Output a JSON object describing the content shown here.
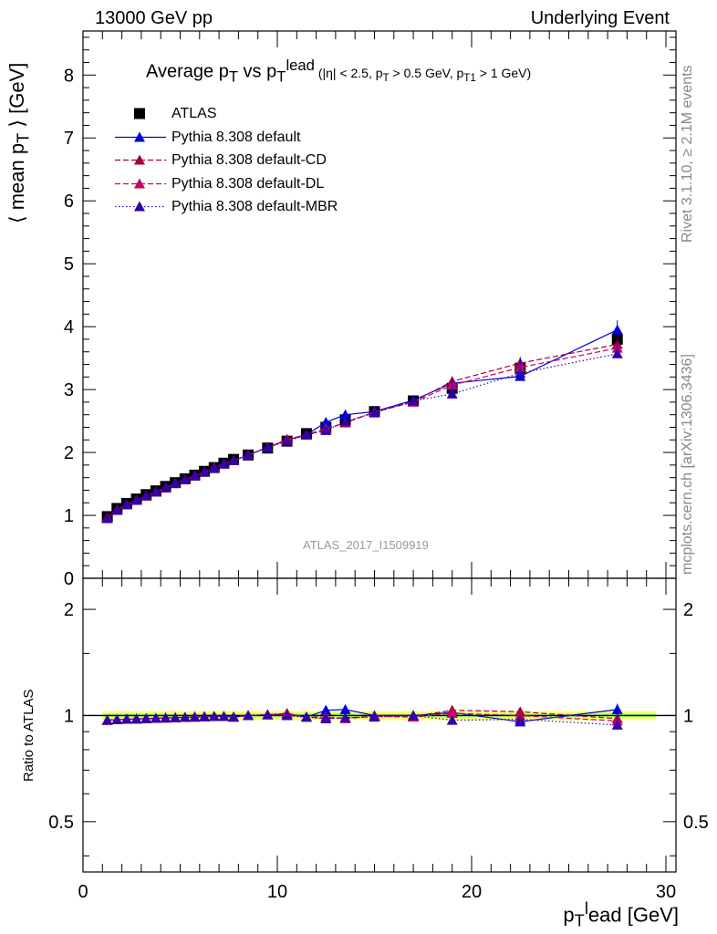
{
  "header": {
    "left": "13000 GeV pp",
    "right": "Underlying Event"
  },
  "side_text": {
    "rivet": "Rivet 3.1.10, ≥ 2.1M events",
    "mcplots": "mcplots.cern.ch [arXiv:1306.3436]"
  },
  "watermark": "ATLAS_2017_I1509919",
  "title": {
    "main": "Average p",
    "main_sub": "T",
    "vs": " vs p",
    "vs_sub": "T",
    "vs_sup": "lead",
    "cuts": " (|η| < 2.5, p",
    "cuts_sub1": "T",
    "cuts_mid": " > 0.5 GeV, p",
    "cuts_sub2": "T1",
    "cuts_end": " > 1 GeV)"
  },
  "legend": [
    {
      "label": "ATLAS",
      "color": "#000000",
      "style": "marker-square"
    },
    {
      "label": "Pythia 8.308 default",
      "color": "#0000dd",
      "style": "solid"
    },
    {
      "label": "Pythia 8.308 default-CD",
      "color": "#a0003c",
      "style": "dashed"
    },
    {
      "label": "Pythia 8.308 default-DL",
      "color": "#cc0066",
      "style": "dashed"
    },
    {
      "label": "Pythia 8.308 default-MBR",
      "color": "#3300aa",
      "style": "dotted"
    }
  ],
  "axes": {
    "ylabel_top": "⟨ mean p",
    "ylabel_top_sub": "T",
    "ylabel_top_end": " ⟩ [GeV]",
    "ylabel_bottom": "Ratio to ATLAS",
    "xlabel": "p",
    "xlabel_sub": "T",
    "xlabel_sup": "l",
    "xlabel_end": "ead [GeV]"
  },
  "chart_data": [
    {
      "type": "scatter",
      "panel": "main",
      "xlim": [
        0,
        30
      ],
      "ylim": [
        0,
        8.7
      ],
      "x_ticks": [
        0,
        10,
        20,
        30
      ],
      "y_ticks": [
        0,
        1,
        2,
        3,
        4,
        5,
        6,
        7,
        8
      ],
      "y_tick_labels": [
        "0",
        "1",
        "2",
        "3",
        "4",
        "5",
        "6",
        "7",
        "8"
      ],
      "x": [
        1.25,
        1.75,
        2.25,
        2.75,
        3.25,
        3.75,
        4.25,
        4.75,
        5.25,
        5.75,
        6.25,
        6.75,
        7.25,
        7.75,
        8.5,
        9.5,
        10.5,
        11.5,
        12.5,
        13.5,
        15,
        17,
        19,
        22.5,
        27.5
      ],
      "series": [
        {
          "name": "ATLAS",
          "color": "#000000",
          "style": "marker-square",
          "values": [
            0.98,
            1.11,
            1.19,
            1.26,
            1.33,
            1.39,
            1.46,
            1.52,
            1.58,
            1.64,
            1.7,
            1.76,
            1.83,
            1.89,
            1.96,
            2.07,
            2.18,
            2.3,
            2.4,
            2.52,
            2.65,
            2.82,
            3.02,
            3.34,
            3.8
          ]
        },
        {
          "name": "Pythia 8.308 default",
          "color": "#0000dd",
          "style": "solid",
          "values": [
            0.95,
            1.08,
            1.17,
            1.24,
            1.31,
            1.37,
            1.44,
            1.51,
            1.57,
            1.63,
            1.69,
            1.75,
            1.82,
            1.87,
            1.96,
            2.08,
            2.2,
            2.28,
            2.48,
            2.6,
            2.65,
            2.83,
            3.1,
            3.21,
            3.95
          ]
        },
        {
          "name": "Pythia 8.308 default-CD",
          "color": "#a0003c",
          "style": "dashed",
          "values": [
            0.96,
            1.09,
            1.17,
            1.24,
            1.31,
            1.37,
            1.44,
            1.51,
            1.57,
            1.63,
            1.69,
            1.76,
            1.82,
            1.87,
            1.96,
            2.08,
            2.21,
            2.28,
            2.36,
            2.48,
            2.64,
            2.81,
            3.13,
            3.42,
            3.72
          ]
        },
        {
          "name": "Pythia 8.308 default-DL",
          "color": "#cc0066",
          "style": "dashed",
          "values": [
            0.96,
            1.09,
            1.17,
            1.24,
            1.31,
            1.37,
            1.44,
            1.51,
            1.57,
            1.63,
            1.69,
            1.76,
            1.82,
            1.87,
            1.96,
            2.08,
            2.19,
            2.28,
            2.38,
            2.47,
            2.64,
            2.8,
            3.07,
            3.35,
            3.66
          ]
        },
        {
          "name": "Pythia 8.308 default-MBR",
          "color": "#3300aa",
          "style": "dotted",
          "values": [
            0.95,
            1.08,
            1.17,
            1.24,
            1.31,
            1.37,
            1.44,
            1.51,
            1.57,
            1.63,
            1.69,
            1.75,
            1.82,
            1.87,
            1.96,
            2.08,
            2.18,
            2.28,
            2.35,
            2.49,
            2.63,
            2.82,
            2.93,
            3.26,
            3.57
          ]
        }
      ]
    },
    {
      "type": "scatter",
      "panel": "ratio",
      "xlim": [
        0,
        30
      ],
      "ylim": [
        0.36,
        2.45
      ],
      "log_scale_y": true,
      "x_ticks": [
        0,
        10,
        20,
        30
      ],
      "x_tick_labels": [
        "0",
        "10",
        "20",
        "30"
      ],
      "y_ticks": [
        0.5,
        1,
        2
      ],
      "y_tick_labels": [
        "0.5",
        "1",
        "2"
      ],
      "band": {
        "color": "#ffff66",
        "inner_color": "#66ff66",
        "lo": 0.97,
        "hi": 1.03
      },
      "x": [
        1.25,
        1.75,
        2.25,
        2.75,
        3.25,
        3.75,
        4.25,
        4.75,
        5.25,
        5.75,
        6.25,
        6.75,
        7.25,
        7.75,
        8.5,
        9.5,
        10.5,
        11.5,
        12.5,
        13.5,
        15,
        17,
        19,
        22.5,
        27.5
      ],
      "series": [
        {
          "name": "Pythia 8.308 default",
          "color": "#0000dd",
          "style": "solid",
          "values": [
            0.97,
            0.973,
            0.976,
            0.978,
            0.98,
            0.982,
            0.984,
            0.986,
            0.988,
            0.99,
            0.992,
            0.994,
            0.994,
            0.99,
            1.0,
            1.005,
            1.01,
            0.99,
            1.035,
            1.04,
            1.0,
            1.0,
            1.02,
            0.96,
            1.04
          ]
        },
        {
          "name": "Pythia 8.308 default-CD",
          "color": "#a0003c",
          "style": "dashed",
          "values": [
            0.97,
            0.973,
            0.976,
            0.978,
            0.98,
            0.982,
            0.984,
            0.986,
            0.988,
            0.99,
            0.992,
            0.994,
            0.994,
            0.99,
            1.0,
            1.005,
            1.015,
            0.99,
            0.98,
            0.985,
            0.995,
            0.995,
            1.035,
            1.025,
            0.98
          ]
        },
        {
          "name": "Pythia 8.308 default-DL",
          "color": "#cc0066",
          "style": "dashed",
          "values": [
            0.97,
            0.973,
            0.976,
            0.978,
            0.98,
            0.982,
            0.984,
            0.986,
            0.988,
            0.99,
            0.992,
            0.994,
            0.994,
            0.99,
            1.0,
            1.005,
            1.005,
            0.99,
            0.99,
            0.98,
            0.995,
            0.99,
            1.015,
            1.0,
            0.965
          ]
        },
        {
          "name": "Pythia 8.308 default-MBR",
          "color": "#3300aa",
          "style": "dotted",
          "values": [
            0.97,
            0.973,
            0.976,
            0.978,
            0.98,
            0.982,
            0.984,
            0.986,
            0.988,
            0.99,
            0.992,
            0.994,
            0.994,
            0.99,
            1.0,
            1.005,
            1.0,
            0.99,
            0.98,
            0.985,
            0.99,
            1.0,
            0.97,
            0.975,
            0.94
          ]
        }
      ]
    }
  ]
}
